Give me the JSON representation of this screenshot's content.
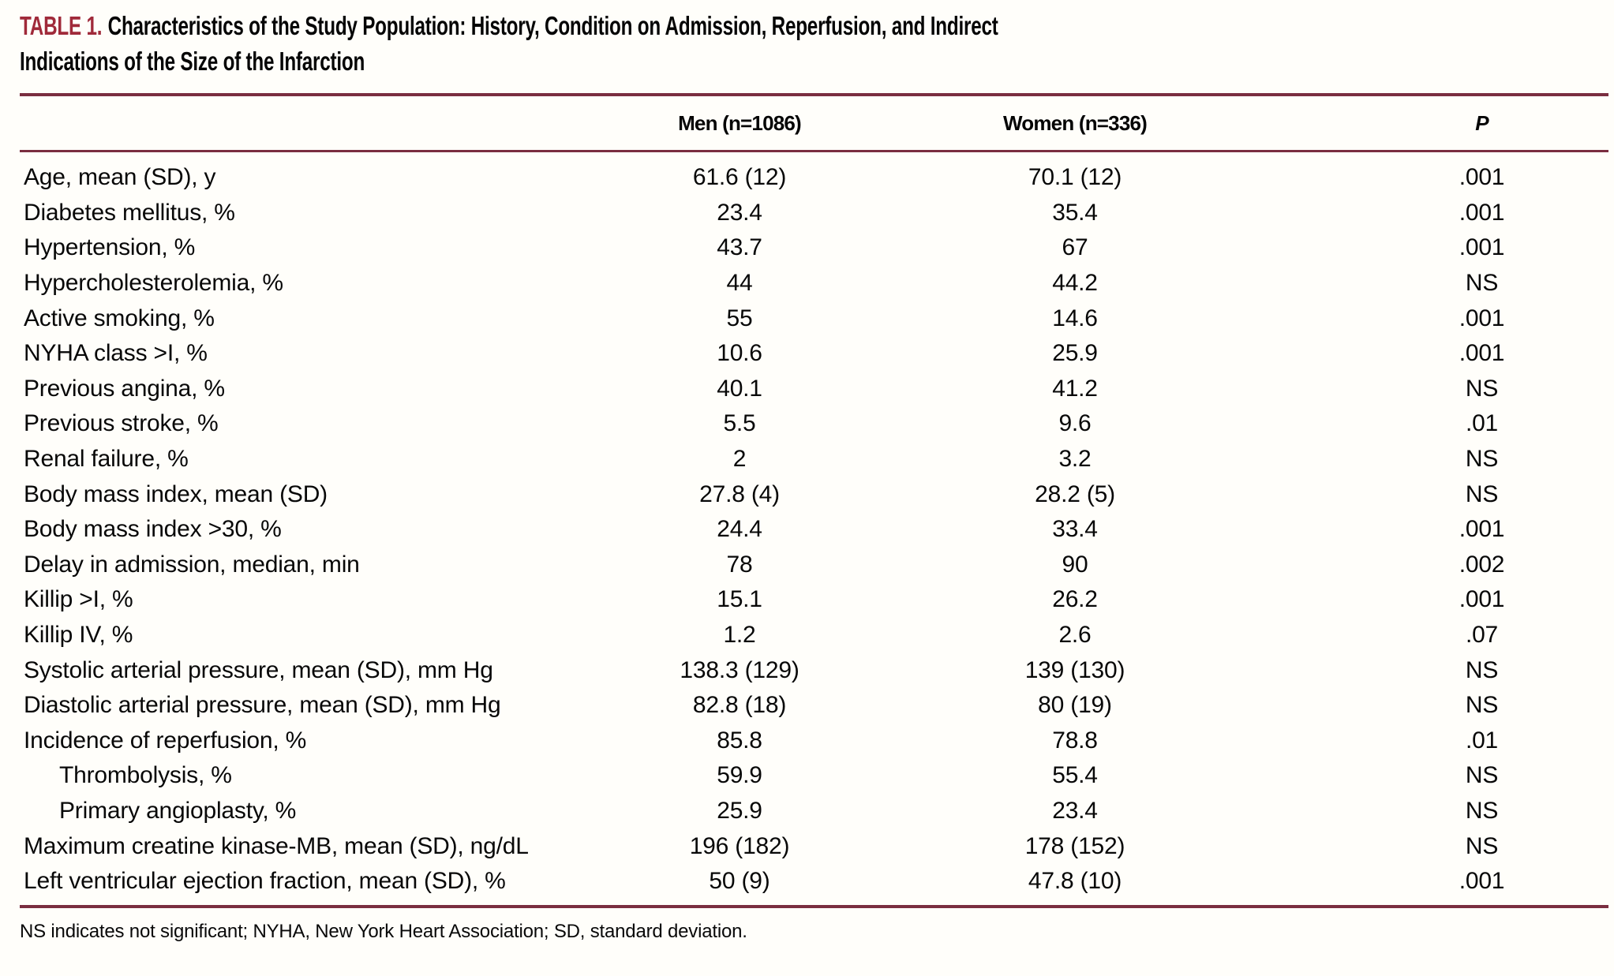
{
  "table": {
    "label": "TABLE 1.",
    "title_line1": "Characteristics of the Study Population: History, Condition on Admission, Reperfusion, and Indirect",
    "title_line2": "Indications of the Size of the Infarction",
    "columns": [
      "Men (n=1086)",
      "Women (n=336)",
      "P"
    ],
    "rows": [
      {
        "label": "Age, mean (SD), y",
        "men": "61.6 (12)",
        "women": "70.1 (12)",
        "p": ".001",
        "indent": false
      },
      {
        "label": "Diabetes mellitus, %",
        "men": "23.4",
        "women": "35.4",
        "p": ".001",
        "indent": false
      },
      {
        "label": "Hypertension, %",
        "men": "43.7",
        "women": "67",
        "p": ".001",
        "indent": false
      },
      {
        "label": "Hypercholesterolemia, %",
        "men": "44",
        "women": "44.2",
        "p": "NS",
        "indent": false
      },
      {
        "label": "Active smoking, %",
        "men": "55",
        "women": "14.6",
        "p": ".001",
        "indent": false
      },
      {
        "label": "NYHA class >I, %",
        "men": "10.6",
        "women": "25.9",
        "p": ".001",
        "indent": false
      },
      {
        "label": "Previous angina, %",
        "men": "40.1",
        "women": "41.2",
        "p": "NS",
        "indent": false
      },
      {
        "label": "Previous stroke, %",
        "men": "5.5",
        "women": "9.6",
        "p": ".01",
        "indent": false
      },
      {
        "label": "Renal failure, %",
        "men": "2",
        "women": "3.2",
        "p": "NS",
        "indent": false
      },
      {
        "label": "Body mass index, mean (SD)",
        "men": "27.8 (4)",
        "women": "28.2 (5)",
        "p": "NS",
        "indent": false
      },
      {
        "label": "Body mass index >30, %",
        "men": "24.4",
        "women": "33.4",
        "p": ".001",
        "indent": false
      },
      {
        "label": "Delay in admission, median, min",
        "men": "78",
        "women": "90",
        "p": ".002",
        "indent": false
      },
      {
        "label": "Killip >I, %",
        "men": "15.1",
        "women": "26.2",
        "p": ".001",
        "indent": false
      },
      {
        "label": "Killip IV, %",
        "men": "1.2",
        "women": "2.6",
        "p": ".07",
        "indent": false
      },
      {
        "label": "Systolic arterial pressure, mean (SD), mm Hg",
        "men": "138.3 (129)",
        "women": "139 (130)",
        "p": "NS",
        "indent": false
      },
      {
        "label": "Diastolic arterial pressure, mean (SD), mm Hg",
        "men": "82.8 (18)",
        "women": "80 (19)",
        "p": "NS",
        "indent": false
      },
      {
        "label": "Incidence of reperfusion, %",
        "men": "85.8",
        "women": "78.8",
        "p": ".01",
        "indent": false
      },
      {
        "label": "Thrombolysis, %",
        "men": "59.9",
        "women": "55.4",
        "p": "NS",
        "indent": true
      },
      {
        "label": "Primary angioplasty, %",
        "men": "25.9",
        "women": "23.4",
        "p": "NS",
        "indent": true
      },
      {
        "label": "Maximum creatine kinase-MB, mean (SD), ng/dL",
        "men": "196 (182)",
        "women": "178 (152)",
        "p": "NS",
        "indent": false
      },
      {
        "label": "Left ventricular ejection fraction, mean (SD), %",
        "men": "50 (9)",
        "women": "47.8 (10)",
        "p": ".001",
        "indent": false
      }
    ],
    "footnote": "NS indicates not significant; NYHA, New York Heart Association; SD, standard deviation.",
    "colors": {
      "accent_red": "#a02a3a",
      "rule_maroon": "#7a2e40",
      "text": "#080808",
      "background": "#fffefa"
    }
  }
}
